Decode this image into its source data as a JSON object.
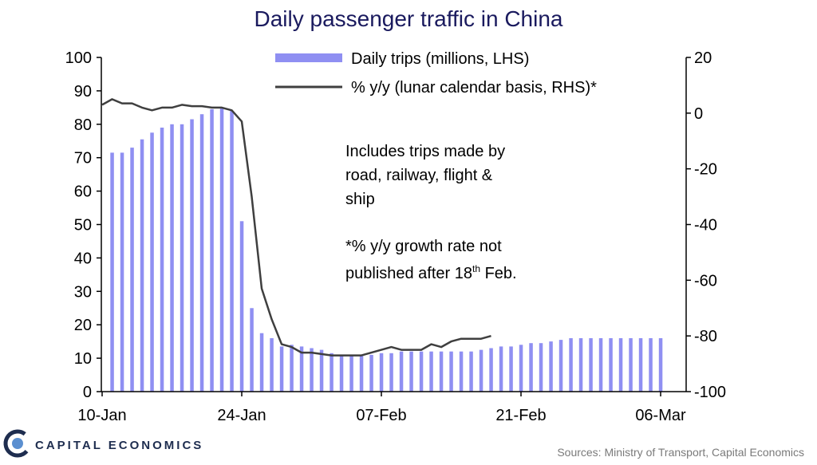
{
  "colors": {
    "title": "#1a1a5e",
    "bar": "#8f8ff2",
    "line": "#3f3f3f",
    "axis": "#000000",
    "source": "#7a7a7a",
    "brand": "#1e2d4f",
    "brand_accent": "#5b8fd0"
  },
  "brand": {
    "name": "CAPITAL ECONOMICS",
    "logo_icon": "capital-economics-logo-icon"
  },
  "source_text": "Sources: Ministry of Transport, Capital Economics",
  "chart_data": {
    "type": "bar",
    "title": "Daily passenger traffic in China",
    "x_tick_labels": [
      "10-Jan",
      "24-Jan",
      "07-Feb",
      "21-Feb",
      "06-Mar"
    ],
    "y_left": {
      "lim": [
        0,
        100
      ],
      "ticks": [
        0,
        10,
        20,
        30,
        40,
        50,
        60,
        70,
        80,
        90,
        100
      ]
    },
    "y_right": {
      "lim": [
        -100,
        20
      ],
      "ticks": [
        -100,
        -80,
        -60,
        -40,
        -20,
        0,
        20
      ]
    },
    "legend_position": "top",
    "annotation_lines": [
      "Includes trips made by",
      "road, railway, flight &",
      "ship",
      "",
      "*% y/y growth rate not",
      "published after 18th Feb."
    ],
    "series": [
      {
        "name": "Daily trips (millions, LHS)",
        "type": "bar",
        "axis": "left",
        "start_date": "11-Jan",
        "values": [
          71.5,
          71.5,
          73,
          75.5,
          77.5,
          79,
          80,
          80,
          81.5,
          83,
          84.5,
          85,
          84,
          51,
          25,
          17.5,
          16,
          13.5,
          14,
          13.5,
          13,
          12.5,
          11.5,
          11,
          11,
          11,
          11,
          11.5,
          11.5,
          12,
          12,
          12,
          12,
          12,
          12,
          12,
          12,
          12.5,
          13,
          13.5,
          13.5,
          14,
          14.5,
          14.5,
          15,
          15.5,
          16,
          16,
          16,
          16,
          16,
          16,
          16,
          16,
          16,
          16
        ]
      },
      {
        "name": "% y/y (lunar calendar basis, RHS)*",
        "type": "line",
        "axis": "right",
        "start_date": "10-Jan",
        "values": [
          3,
          5,
          3.5,
          3.5,
          2,
          1,
          2,
          2,
          3,
          2.5,
          2.5,
          2,
          2,
          1,
          -3,
          -30,
          -63,
          -74,
          -83,
          -84,
          -86,
          -86,
          -86.5,
          -87,
          -87,
          -87,
          -87,
          -86,
          -85,
          -84,
          -85,
          -85,
          -85,
          -83,
          -84,
          -82,
          -81,
          -81,
          -81,
          -80
        ]
      }
    ]
  }
}
